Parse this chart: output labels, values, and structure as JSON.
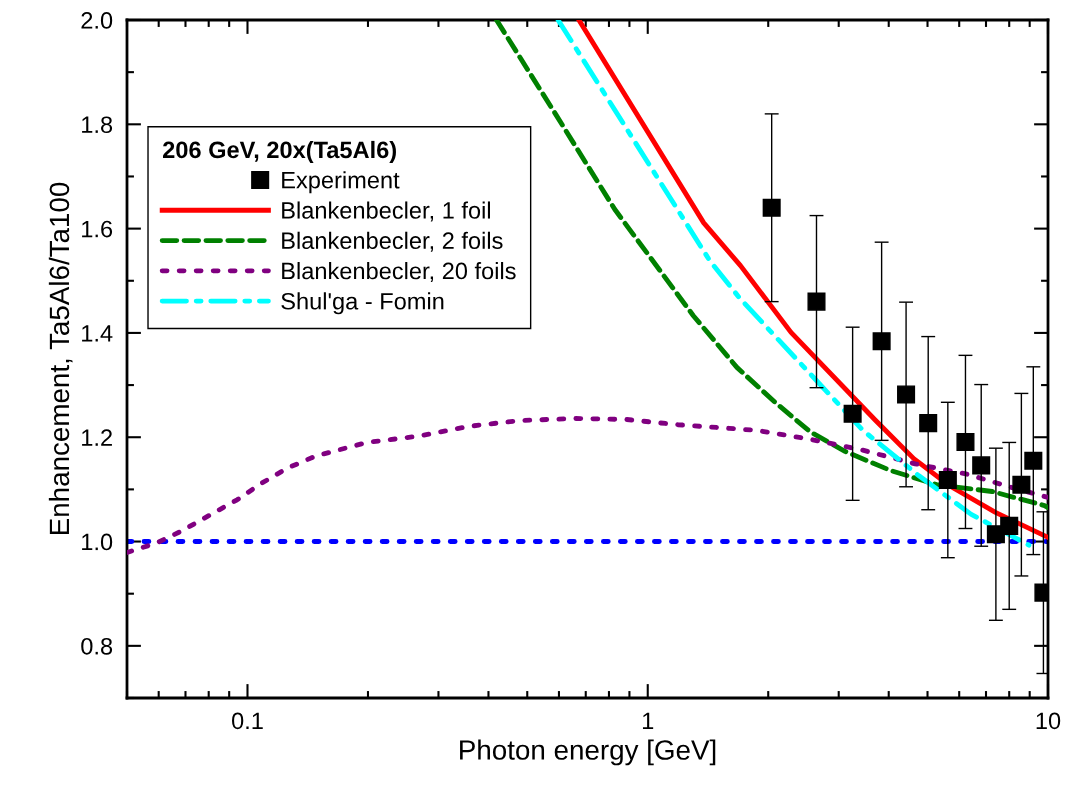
{
  "chart_data": {
    "type": "line",
    "xlabel": "Photon energy [GeV]",
    "ylabel": "Enhancement, Ta5Al6/Ta100",
    "legend_title": "206 GeV, 20x(Ta5Al6)",
    "log": "x",
    "legend": "top left",
    "grid": false,
    "xlim": [
      0.05,
      10
    ],
    "xticks": [
      {
        "value": 0.1,
        "label": "0.1"
      },
      {
        "value": 1,
        "label": "1"
      },
      {
        "value": 10,
        "label": "10"
      }
    ],
    "ylim": [
      0.7,
      2.0
    ],
    "yticks": [
      {
        "value": 0.8,
        "label": "0.8"
      },
      {
        "value": 1.0,
        "label": "1.0"
      },
      {
        "value": 1.2,
        "label": "1.2"
      },
      {
        "value": 1.4,
        "label": "1.4"
      },
      {
        "value": 1.6,
        "label": "1.6"
      },
      {
        "value": 1.8,
        "label": "1.8"
      },
      {
        "value": 2.0,
        "label": "2.0"
      }
    ],
    "ref_lines": [
      {
        "axis": "y",
        "value": 1.0,
        "color": "#0000ff",
        "line_style": "dotted"
      }
    ],
    "series": [
      {
        "name": "Experiment",
        "type": "scatter",
        "marker": "square",
        "color": "#000000",
        "x": [
          2.04,
          2.64,
          3.25,
          3.84,
          4.42,
          5.02,
          5.62,
          6.22,
          6.81,
          7.41,
          8.0,
          8.58,
          9.19,
          9.74
        ],
        "values": [
          1.64,
          1.46,
          1.245,
          1.384,
          1.282,
          1.227,
          1.118,
          1.191,
          1.146,
          1.014,
          1.03,
          1.109,
          1.155,
          0.902
        ],
        "errors": [
          0.18,
          0.165,
          0.166,
          0.19,
          0.177,
          0.166,
          0.149,
          0.166,
          0.155,
          0.165,
          0.16,
          0.175,
          0.18,
          0.155
        ]
      },
      {
        "name": "Blankenbecler, 1 foil",
        "line_style": "solid",
        "color": "#ff0000",
        "x": [
          0.673,
          1.38,
          1.705,
          2.28,
          3.7,
          4.62,
          5.7,
          7.39,
          10
        ],
        "values": [
          2.0,
          1.611,
          1.529,
          1.401,
          1.233,
          1.159,
          1.106,
          1.056,
          1.008
        ]
      },
      {
        "name": "Blankenbecler, 2 foils",
        "line_style": "dashed",
        "color": "#008000",
        "x": [
          0.419,
          0.589,
          0.827,
          1.3,
          1.67,
          2.08,
          2.55,
          3.11,
          4.05,
          5.27,
          7.25,
          9.8,
          10
        ],
        "values": [
          2.0,
          1.819,
          1.637,
          1.433,
          1.334,
          1.267,
          1.21,
          1.173,
          1.136,
          1.109,
          1.096,
          1.069,
          1.065
        ]
      },
      {
        "name": "Blankenbecler, 20 foils",
        "line_style": "dotted",
        "color": "#800080",
        "x": [
          0.05,
          0.0592,
          0.0684,
          0.0802,
          0.0942,
          0.108,
          0.126,
          0.148,
          0.199,
          0.267,
          0.358,
          0.48,
          0.66,
          0.886,
          1.19,
          1.6,
          1.88,
          2.55,
          3.41,
          4.66,
          6.29,
          8.0,
          9.95
        ],
        "values": [
          0.979,
          0.997,
          1.02,
          1.05,
          1.08,
          1.111,
          1.141,
          1.164,
          1.19,
          1.202,
          1.221,
          1.232,
          1.236,
          1.234,
          1.224,
          1.217,
          1.213,
          1.196,
          1.176,
          1.149,
          1.129,
          1.105,
          1.085
        ]
      },
      {
        "name": "Shul'ga - Fomin",
        "line_style": "dashdot",
        "color": "#00ffff",
        "x": [
          0.597,
          1.43,
          1.7,
          2.55,
          3.45,
          4.76,
          6.43,
          8.87,
          8.96
        ],
        "values": [
          2.0,
          1.538,
          1.466,
          1.321,
          1.213,
          1.126,
          1.052,
          0.995,
          0.993
        ]
      }
    ]
  }
}
